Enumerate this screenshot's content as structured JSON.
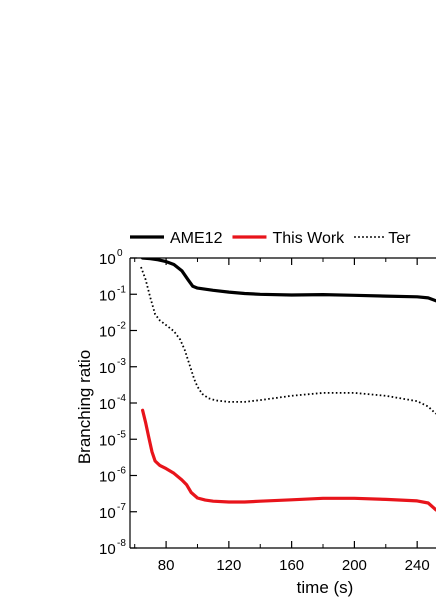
{
  "chart_data": {
    "type": "line",
    "xlabel": "time (s)",
    "ylabel": "Branching ratio",
    "xlim": [
      57,
      252
    ],
    "x_ticks": [
      80,
      120,
      160,
      200,
      240
    ],
    "y_scale": "log",
    "y_tick_exponents": [
      0,
      -1,
      -2,
      -3,
      -4,
      -5,
      -6,
      -7,
      -8
    ],
    "y_tick_base": "10",
    "legend_position": "top",
    "series": [
      {
        "name": "AME12",
        "color": "#000000",
        "style": "solid",
        "x": [
          65,
          70,
          75,
          80,
          85,
          90,
          94,
          97,
          100,
          105,
          110,
          120,
          130,
          140,
          160,
          180,
          200,
          220,
          240,
          247,
          252
        ],
        "log10_y": [
          0.0,
          -0.02,
          -0.05,
          -0.1,
          -0.18,
          -0.35,
          -0.6,
          -0.78,
          -0.83,
          -0.86,
          -0.89,
          -0.94,
          -0.98,
          -1.0,
          -1.02,
          -1.01,
          -1.03,
          -1.05,
          -1.07,
          -1.1,
          -1.18
        ]
      },
      {
        "name": "This Work",
        "color": "#e8141b",
        "style": "solid",
        "x": [
          65,
          67,
          69,
          71,
          73,
          76,
          80,
          85,
          90,
          93,
          96,
          100,
          105,
          110,
          120,
          130,
          140,
          160,
          180,
          200,
          220,
          240,
          247,
          252
        ],
        "log10_y": [
          -4.2,
          -4.55,
          -4.95,
          -5.35,
          -5.6,
          -5.72,
          -5.81,
          -5.94,
          -6.12,
          -6.25,
          -6.47,
          -6.62,
          -6.68,
          -6.71,
          -6.73,
          -6.73,
          -6.71,
          -6.67,
          -6.63,
          -6.63,
          -6.66,
          -6.7,
          -6.76,
          -6.95
        ]
      },
      {
        "name": "Ter",
        "color": "#000000",
        "style": "dotted",
        "x": [
          64,
          67,
          70,
          73,
          76,
          80,
          85,
          89,
          92,
          95,
          98,
          100,
          103,
          107,
          112,
          120,
          130,
          140,
          160,
          180,
          200,
          220,
          240,
          247,
          252
        ],
        "log10_y": [
          -0.25,
          -0.6,
          -1.1,
          -1.55,
          -1.72,
          -1.85,
          -2.02,
          -2.25,
          -2.55,
          -2.95,
          -3.35,
          -3.55,
          -3.75,
          -3.87,
          -3.93,
          -3.97,
          -3.97,
          -3.92,
          -3.8,
          -3.72,
          -3.72,
          -3.8,
          -3.95,
          -4.1,
          -4.3
        ]
      }
    ]
  }
}
